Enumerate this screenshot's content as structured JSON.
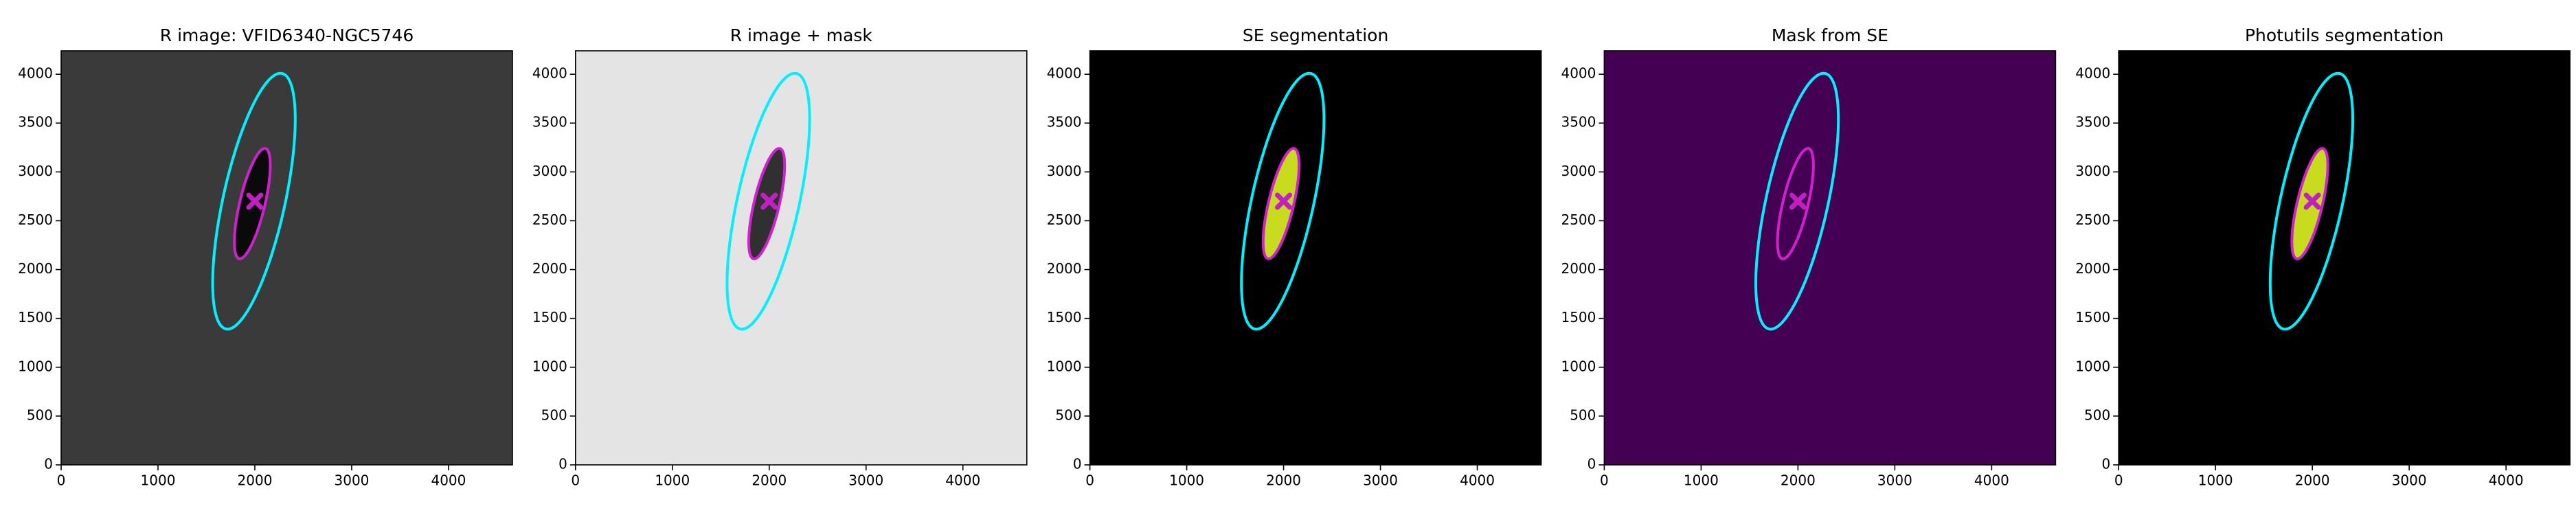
{
  "chart_data": [
    {
      "type": "image",
      "title": "R image: VFID6340-NGC5746",
      "xlim": [
        0,
        4660
      ],
      "ylim": [
        0,
        4240
      ],
      "xticks": [
        0,
        1000,
        2000,
        3000,
        4000
      ],
      "yticks": [
        0,
        500,
        1000,
        1500,
        2000,
        2500,
        3000,
        3500,
        4000
      ],
      "background": "#3a3a3a",
      "galaxy_color": "#0a0a0a",
      "ellipses": [
        {
          "x": 1991,
          "y": 2700,
          "a": 1340,
          "b": 320,
          "angle": 77.5,
          "color": "#00f0ff"
        },
        {
          "x": 1974,
          "y": 2675,
          "a": 581,
          "b": 130,
          "angle": 76.5,
          "color": "#d020d0"
        }
      ],
      "marker": {
        "x": 2000,
        "y": 2700,
        "color": "#c020c0"
      }
    },
    {
      "type": "image",
      "title": "R image + mask",
      "xlim": [
        0,
        4660
      ],
      "ylim": [
        0,
        4240
      ],
      "xticks": [
        0,
        1000,
        2000,
        3000,
        4000
      ],
      "yticks": [
        0,
        500,
        1000,
        1500,
        2000,
        2500,
        3000,
        3500,
        4000
      ],
      "background": "#e4e4e4",
      "galaxy_color": "#303030",
      "ellipses": [
        {
          "x": 1991,
          "y": 2700,
          "a": 1340,
          "b": 320,
          "angle": 77.5,
          "color": "#00f0ff"
        },
        {
          "x": 1974,
          "y": 2675,
          "a": 581,
          "b": 130,
          "angle": 76.5,
          "color": "#d020d0"
        }
      ],
      "marker": {
        "x": 2000,
        "y": 2700,
        "color": "#c020c0"
      }
    },
    {
      "type": "image",
      "title": "SE segmentation",
      "xlim": [
        0,
        4660
      ],
      "ylim": [
        0,
        4240
      ],
      "xticks": [
        0,
        1000,
        2000,
        3000,
        4000
      ],
      "yticks": [
        0,
        500,
        1000,
        1500,
        2000,
        2500,
        3000,
        3500,
        4000
      ],
      "background": "#000000",
      "galaxy_color": "#c8dc1e",
      "ellipses": [
        {
          "x": 1991,
          "y": 2700,
          "a": 1340,
          "b": 320,
          "angle": 77.5,
          "color": "#00f0ff"
        },
        {
          "x": 1974,
          "y": 2675,
          "a": 581,
          "b": 130,
          "angle": 76.5,
          "color": "#d020d0"
        }
      ],
      "marker": {
        "x": 2000,
        "y": 2700,
        "color": "#c020c0"
      }
    },
    {
      "type": "image",
      "title": "Mask from SE",
      "xlim": [
        0,
        4660
      ],
      "ylim": [
        0,
        4240
      ],
      "xticks": [
        0,
        1000,
        2000,
        3000,
        4000
      ],
      "yticks": [
        0,
        500,
        1000,
        1500,
        2000,
        2500,
        3000,
        3500,
        4000
      ],
      "background": "#440154",
      "galaxy_color": "#440154",
      "ellipses": [
        {
          "x": 1991,
          "y": 2700,
          "a": 1340,
          "b": 320,
          "angle": 77.5,
          "color": "#00f0ff"
        },
        {
          "x": 1974,
          "y": 2675,
          "a": 581,
          "b": 130,
          "angle": 76.5,
          "color": "#d020d0"
        }
      ],
      "marker": {
        "x": 2000,
        "y": 2700,
        "color": "#c020c0"
      }
    },
    {
      "type": "image",
      "title": "Photutils segmentation",
      "xlim": [
        0,
        4660
      ],
      "ylim": [
        0,
        4240
      ],
      "xticks": [
        0,
        1000,
        2000,
        3000,
        4000
      ],
      "yticks": [
        0,
        500,
        1000,
        1500,
        2000,
        2500,
        3000,
        3500,
        4000
      ],
      "background": "#000000",
      "galaxy_color": "#c8dc1e",
      "ellipses": [
        {
          "x": 1991,
          "y": 2700,
          "a": 1340,
          "b": 320,
          "angle": 77.5,
          "color": "#00f0ff"
        },
        {
          "x": 1974,
          "y": 2675,
          "a": 581,
          "b": 130,
          "angle": 76.5,
          "color": "#d020d0"
        }
      ],
      "marker": {
        "x": 2000,
        "y": 2700,
        "color": "#c020c0"
      }
    }
  ]
}
